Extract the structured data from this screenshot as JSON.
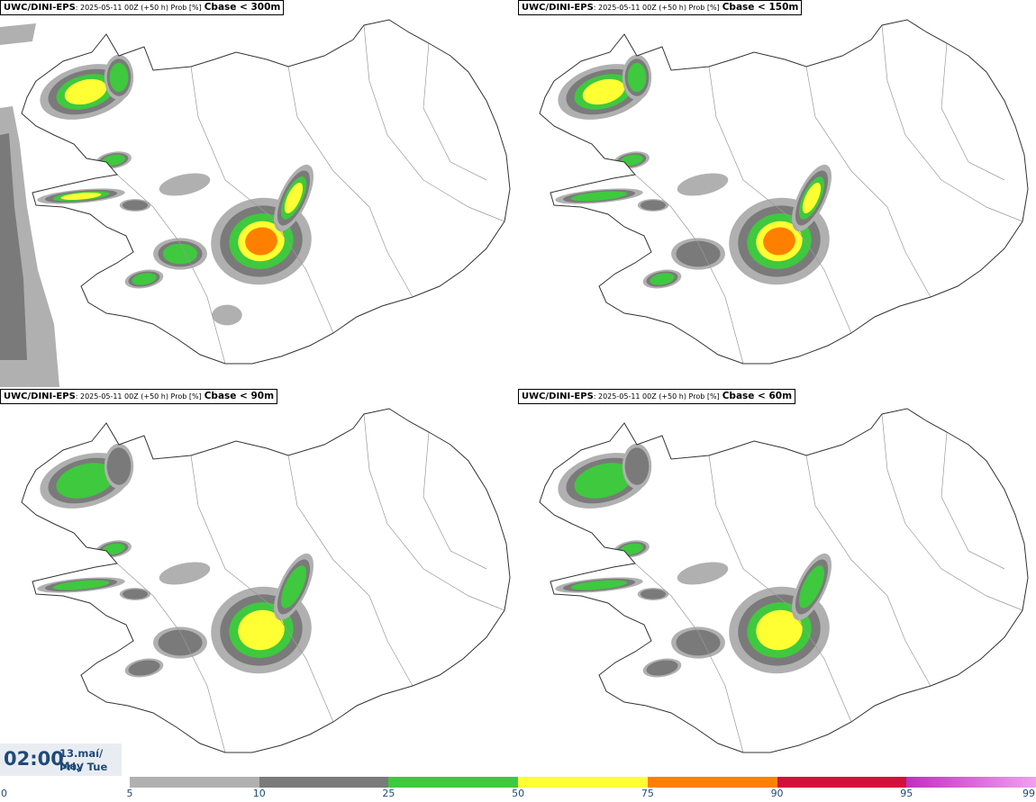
{
  "panels": [
    {
      "model": "UWC/DINI-EPS",
      "meta": ": 2025-05-11 00Z (+50 h) Prob [%]",
      "threshold": "Cbase < 300m",
      "level": 4
    },
    {
      "model": "UWC/DINI-EPS",
      "meta": ": 2025-05-11 00Z (+50 h) Prob [%]",
      "threshold": "Cbase < 150m",
      "level": 3
    },
    {
      "model": "UWC/DINI-EPS",
      "meta": ": 2025-05-11 00Z (+50 h) Prob [%]",
      "threshold": "Cbase < 90m",
      "level": 2
    },
    {
      "model": "UWC/DINI-EPS",
      "meta": ": 2025-05-11 00Z (+50 h) Prob [%]",
      "threshold": "Cbase < 60m",
      "level": 2
    }
  ],
  "valid_time": {
    "time": "02:00",
    "date_line1": "13.maí/ May",
    "date_line2": "Þri./ Tue"
  },
  "colorbar": {
    "zero_label": "0",
    "ticks": [
      "5",
      "10",
      "25",
      "50",
      "75",
      "90",
      "95",
      "99"
    ],
    "bins": [
      {
        "from": 5,
        "to": 10,
        "color": "#b0b0b0"
      },
      {
        "from": 10,
        "to": 25,
        "color": "#7a7a7a"
      },
      {
        "from": 25,
        "to": 50,
        "color": "#3ec93e"
      },
      {
        "from": 50,
        "to": 75,
        "color": "#ffff33"
      },
      {
        "from": 75,
        "to": 90,
        "color": "#ff8000"
      },
      {
        "from": 90,
        "to": 95,
        "color": "#d4103a"
      },
      {
        "from": 95,
        "to": 99,
        "color": "#c030c0"
      },
      {
        "from": 99,
        "to": 100,
        "color": "#f0a0f0"
      }
    ]
  }
}
